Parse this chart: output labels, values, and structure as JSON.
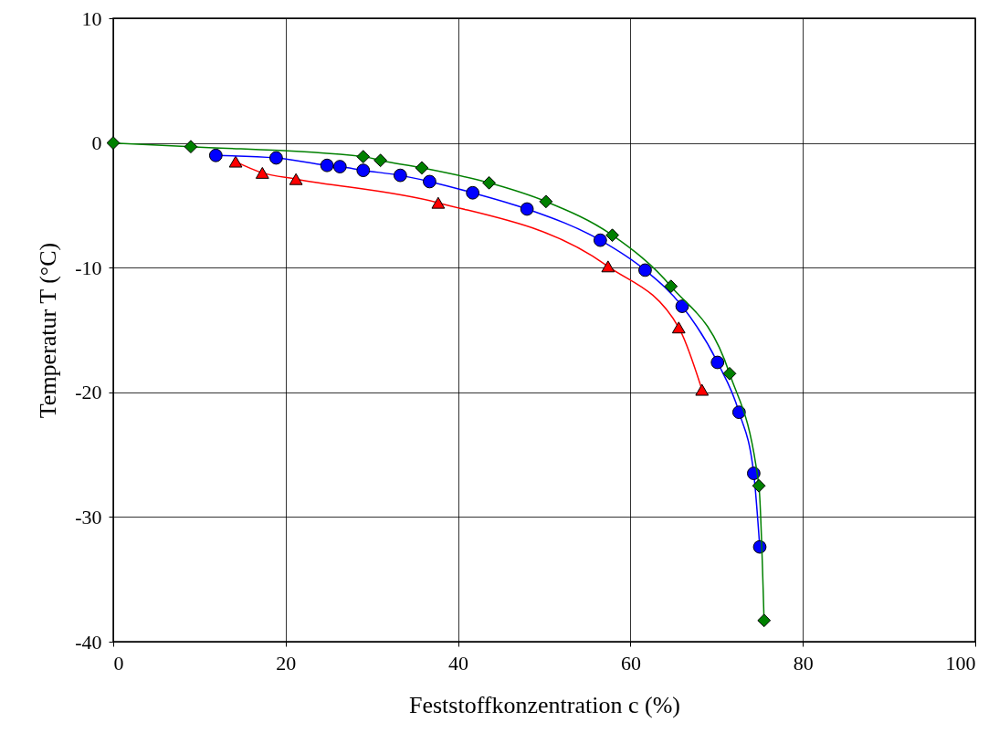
{
  "chart_data": {
    "type": "line",
    "xlabel": "Feststoffkonzentration c (%)",
    "ylabel": "Temperatur T (°C)",
    "xlim": [
      0,
      100
    ],
    "xticks": [
      0,
      20,
      40,
      60,
      80,
      100
    ],
    "ylim": [
      -40,
      10
    ],
    "yticks": [
      -40,
      -30,
      -20,
      -10,
      0,
      10
    ],
    "grid": true,
    "line_style": "solid",
    "series": [
      {
        "color": "#ff0000",
        "marker": "triangle",
        "x": [
          14.2,
          17.3,
          21.2,
          37.7,
          57.4,
          65.6,
          68.3
        ],
        "values": [
          -1.5,
          -2.4,
          -2.9,
          -4.8,
          -9.9,
          -14.8,
          -19.8
        ]
      },
      {
        "color": "#0000ff",
        "marker": "circle",
        "x": [
          11.9,
          18.9,
          24.8,
          26.3,
          29.0,
          33.3,
          36.7,
          41.7,
          48.0,
          56.5,
          61.7,
          66.0,
          70.1,
          72.6,
          74.3,
          75.0
        ],
        "values": [
          -1.0,
          -1.2,
          -1.8,
          -1.9,
          -2.2,
          -2.6,
          -3.1,
          -4.0,
          -5.3,
          -7.8,
          -10.2,
          -13.1,
          -17.6,
          -21.6,
          -26.5,
          -32.4
        ]
      },
      {
        "color": "#008000",
        "marker": "diamond",
        "x": [
          0,
          9.0,
          29.0,
          31.0,
          35.8,
          43.6,
          50.2,
          57.9,
          64.7,
          71.5,
          74.9,
          75.5
        ],
        "values": [
          0,
          -0.3,
          -1.1,
          -1.4,
          -2.0,
          -3.2,
          -4.7,
          -7.4,
          -11.5,
          -18.5,
          -27.5,
          -38.3
        ]
      }
    ]
  }
}
